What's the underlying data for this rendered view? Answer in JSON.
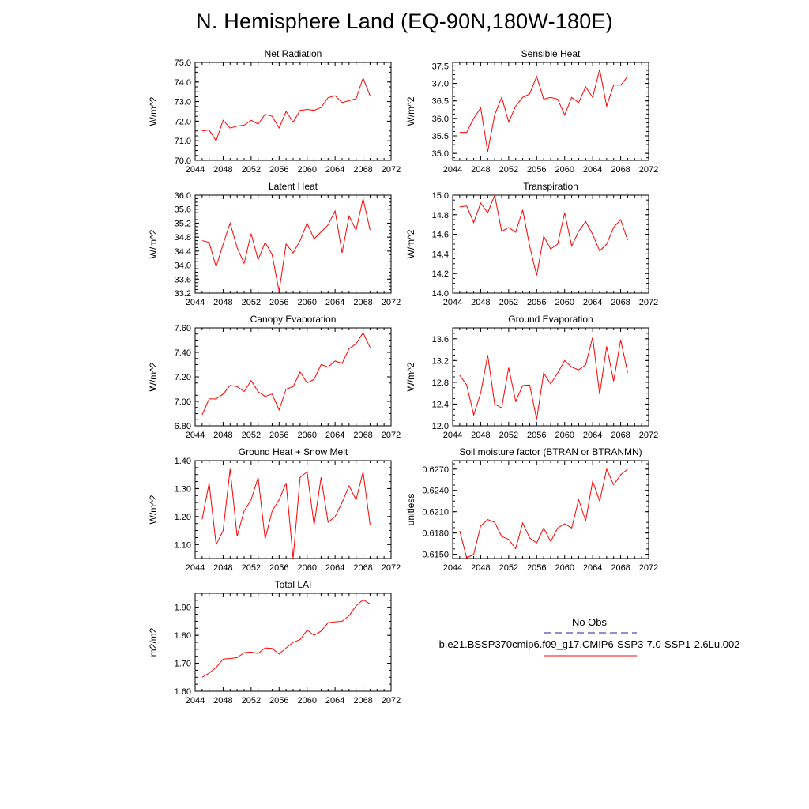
{
  "title": "N. Hemisphere Land (EQ-90N,180W-180E)",
  "colors": {
    "series": "#ff0000",
    "obs": "#2020a0",
    "axis": "#000000"
  },
  "legend": {
    "obs_label": "No Obs",
    "model_label": "b.e21.BSSP370cmip6.f09_g17.CMIP6-SSP3-7.0-SSP1-2.6Lu.002"
  },
  "chart_data": [
    {
      "type": "line",
      "title": "Net Radiation",
      "ylabel": "W/m^2",
      "xlim": [
        2044,
        2072
      ],
      "xticks": [
        "2044",
        "2048",
        "2052",
        "2056",
        "2060",
        "2064",
        "2068",
        "2072"
      ],
      "ylim": [
        70.0,
        75.0
      ],
      "yticks": [
        "70.0",
        "71.0",
        "72.0",
        "73.0",
        "74.0",
        "75.0"
      ],
      "x": [
        2045,
        2046,
        2047,
        2048,
        2049,
        2050,
        2051,
        2052,
        2053,
        2054,
        2055,
        2056,
        2057,
        2058,
        2059,
        2060,
        2061,
        2062,
        2063,
        2064,
        2065,
        2066,
        2067,
        2068,
        2069
      ],
      "values": [
        71.5,
        71.55,
        71.0,
        72.05,
        71.65,
        71.75,
        71.8,
        72.05,
        71.85,
        72.35,
        72.25,
        71.65,
        72.5,
        71.95,
        72.55,
        72.6,
        72.55,
        72.7,
        73.2,
        73.3,
        72.95,
        73.05,
        73.15,
        74.2,
        73.3
      ]
    },
    {
      "type": "line",
      "title": "Sensible Heat",
      "ylabel": "W/m^2",
      "xlim": [
        2044,
        2072
      ],
      "xticks": [
        "2044",
        "2048",
        "2052",
        "2056",
        "2060",
        "2064",
        "2068",
        "2072"
      ],
      "ylim": [
        34.8,
        37.6
      ],
      "yticks": [
        "35.0",
        "35.5",
        "36.0",
        "36.5",
        "37.0",
        "37.5"
      ],
      "x": [
        2045,
        2046,
        2047,
        2048,
        2049,
        2050,
        2051,
        2052,
        2053,
        2054,
        2055,
        2056,
        2057,
        2058,
        2059,
        2060,
        2061,
        2062,
        2063,
        2064,
        2065,
        2066,
        2067,
        2068,
        2069
      ],
      "values": [
        35.6,
        35.6,
        36.0,
        36.3,
        35.05,
        36.1,
        36.6,
        35.9,
        36.35,
        36.6,
        36.7,
        37.2,
        36.55,
        36.6,
        36.55,
        36.1,
        36.6,
        36.45,
        36.9,
        36.6,
        37.4,
        36.35,
        36.95,
        36.95,
        37.2
      ]
    },
    {
      "type": "line",
      "title": "Latent Heat",
      "ylabel": "W/m^2",
      "xlim": [
        2044,
        2072
      ],
      "xticks": [
        "2044",
        "2048",
        "2052",
        "2056",
        "2060",
        "2064",
        "2068",
        "2072"
      ],
      "ylim": [
        33.2,
        36.0
      ],
      "yticks": [
        "33.2",
        "33.6",
        "34.0",
        "34.4",
        "34.8",
        "35.2",
        "35.6",
        "36.0"
      ],
      "x": [
        2045,
        2046,
        2047,
        2048,
        2049,
        2050,
        2051,
        2052,
        2053,
        2054,
        2055,
        2056,
        2057,
        2058,
        2059,
        2060,
        2061,
        2062,
        2063,
        2064,
        2065,
        2066,
        2067,
        2068,
        2069
      ],
      "values": [
        34.7,
        34.65,
        33.95,
        34.6,
        35.2,
        34.5,
        34.05,
        34.9,
        34.15,
        34.65,
        34.3,
        33.25,
        34.6,
        34.35,
        34.7,
        35.2,
        34.75,
        34.95,
        35.15,
        35.55,
        34.35,
        35.4,
        35.0,
        35.9,
        35.0
      ]
    },
    {
      "type": "line",
      "title": "Transpiration",
      "ylabel": "W/m^2",
      "xlim": [
        2044,
        2072
      ],
      "xticks": [
        "2044",
        "2048",
        "2052",
        "2056",
        "2060",
        "2064",
        "2068",
        "2072"
      ],
      "ylim": [
        14.0,
        15.0
      ],
      "yticks": [
        "14.0",
        "14.2",
        "14.4",
        "14.6",
        "14.8",
        "15.0"
      ],
      "x": [
        2045,
        2046,
        2047,
        2048,
        2049,
        2050,
        2051,
        2052,
        2053,
        2054,
        2055,
        2056,
        2057,
        2058,
        2059,
        2060,
        2061,
        2062,
        2063,
        2064,
        2065,
        2066,
        2067,
        2068,
        2069
      ],
      "values": [
        14.88,
        14.89,
        14.72,
        14.92,
        14.82,
        15.0,
        14.63,
        14.67,
        14.62,
        14.85,
        14.48,
        14.18,
        14.58,
        14.45,
        14.5,
        14.82,
        14.48,
        14.63,
        14.73,
        14.6,
        14.43,
        14.5,
        14.67,
        14.75,
        14.54
      ]
    },
    {
      "type": "line",
      "title": "Canopy Evaporation",
      "ylabel": "W/m^2",
      "xlim": [
        2044,
        2072
      ],
      "xticks": [
        "2044",
        "2048",
        "2052",
        "2056",
        "2060",
        "2064",
        "2068",
        "2072"
      ],
      "ylim": [
        6.8,
        7.6
      ],
      "yticks": [
        "6.80",
        "7.00",
        "7.20",
        "7.40",
        "7.60"
      ],
      "x": [
        2045,
        2046,
        2047,
        2048,
        2049,
        2050,
        2051,
        2052,
        2053,
        2054,
        2055,
        2056,
        2057,
        2058,
        2059,
        2060,
        2061,
        2062,
        2063,
        2064,
        2065,
        2066,
        2067,
        2068,
        2069
      ],
      "values": [
        6.89,
        7.02,
        7.02,
        7.06,
        7.13,
        7.12,
        7.08,
        7.17,
        7.08,
        7.04,
        7.06,
        6.93,
        7.1,
        7.12,
        7.24,
        7.15,
        7.18,
        7.3,
        7.28,
        7.33,
        7.31,
        7.43,
        7.47,
        7.56,
        7.44
      ]
    },
    {
      "type": "line",
      "title": "Ground Evaporation",
      "ylabel": "W/m^2",
      "xlim": [
        2044,
        2072
      ],
      "xticks": [
        "2044",
        "2048",
        "2052",
        "2056",
        "2060",
        "2064",
        "2068",
        "2072"
      ],
      "ylim": [
        12.0,
        13.8
      ],
      "yticks": [
        "12.0",
        "12.4",
        "12.8",
        "13.2",
        "13.6"
      ],
      "x": [
        2045,
        2046,
        2047,
        2048,
        2049,
        2050,
        2051,
        2052,
        2053,
        2054,
        2055,
        2056,
        2057,
        2058,
        2059,
        2060,
        2061,
        2062,
        2063,
        2064,
        2065,
        2066,
        2067,
        2068,
        2069
      ],
      "values": [
        12.93,
        12.75,
        12.2,
        12.6,
        13.3,
        12.4,
        12.33,
        13.07,
        12.45,
        12.74,
        12.75,
        12.12,
        12.97,
        12.77,
        12.97,
        13.2,
        13.08,
        13.03,
        13.12,
        13.63,
        12.58,
        13.46,
        12.82,
        13.58,
        12.98
      ]
    },
    {
      "type": "line",
      "title": "Ground Heat + Snow Melt",
      "ylabel": "W/m^2",
      "xlim": [
        2044,
        2072
      ],
      "xticks": [
        "2044",
        "2048",
        "2052",
        "2056",
        "2060",
        "2064",
        "2068",
        "2072"
      ],
      "ylim": [
        1.05,
        1.4
      ],
      "yticks": [
        "1.10",
        "1.20",
        "1.30",
        "1.40"
      ],
      "x": [
        2045,
        2046,
        2047,
        2048,
        2049,
        2050,
        2051,
        2052,
        2053,
        2054,
        2055,
        2056,
        2057,
        2058,
        2059,
        2060,
        2061,
        2062,
        2063,
        2064,
        2065,
        2066,
        2067,
        2068,
        2069
      ],
      "values": [
        1.19,
        1.32,
        1.1,
        1.15,
        1.37,
        1.13,
        1.22,
        1.26,
        1.34,
        1.12,
        1.22,
        1.26,
        1.32,
        1.05,
        1.34,
        1.36,
        1.17,
        1.34,
        1.18,
        1.2,
        1.25,
        1.31,
        1.26,
        1.36,
        1.17
      ]
    },
    {
      "type": "line",
      "title": "Soil moisture factor (BTRAN or BTRANMN)",
      "ylabel": "unitless",
      "xlim": [
        2044,
        2072
      ],
      "xticks": [
        "2044",
        "2048",
        "2052",
        "2056",
        "2060",
        "2064",
        "2068",
        "2072"
      ],
      "ylim": [
        0.6144,
        0.6282
      ],
      "yticks": [
        "0.6150",
        "0.6180",
        "0.6210",
        "0.6240",
        "0.6270"
      ],
      "x": [
        2045,
        2046,
        2047,
        2048,
        2049,
        2050,
        2051,
        2052,
        2053,
        2054,
        2055,
        2056,
        2057,
        2058,
        2059,
        2060,
        2061,
        2062,
        2063,
        2064,
        2065,
        2066,
        2067,
        2068,
        2069
      ],
      "values": [
        0.6183,
        0.6145,
        0.615,
        0.619,
        0.6199,
        0.6195,
        0.6175,
        0.6171,
        0.6158,
        0.6194,
        0.6173,
        0.6166,
        0.6187,
        0.6168,
        0.6187,
        0.6193,
        0.6187,
        0.6227,
        0.6197,
        0.6253,
        0.6225,
        0.627,
        0.6248,
        0.6262,
        0.627
      ]
    },
    {
      "type": "line",
      "title": "Total LAI",
      "ylabel": "m2/m2",
      "xlim": [
        2044,
        2072
      ],
      "xticks": [
        "2044",
        "2048",
        "2052",
        "2056",
        "2060",
        "2064",
        "2068",
        "2072"
      ],
      "ylim": [
        1.6,
        1.95
      ],
      "yticks": [
        "1.60",
        "1.70",
        "1.80",
        "1.90"
      ],
      "x": [
        2045,
        2046,
        2047,
        2048,
        2049,
        2050,
        2051,
        2052,
        2053,
        2054,
        2055,
        2056,
        2057,
        2058,
        2059,
        2060,
        2061,
        2062,
        2063,
        2064,
        2065,
        2066,
        2067,
        2068,
        2069
      ],
      "values": [
        1.65,
        1.665,
        1.685,
        1.715,
        1.717,
        1.72,
        1.738,
        1.74,
        1.735,
        1.755,
        1.753,
        1.733,
        1.755,
        1.775,
        1.785,
        1.818,
        1.8,
        1.815,
        1.845,
        1.848,
        1.85,
        1.87,
        1.905,
        1.927,
        1.912
      ]
    }
  ]
}
